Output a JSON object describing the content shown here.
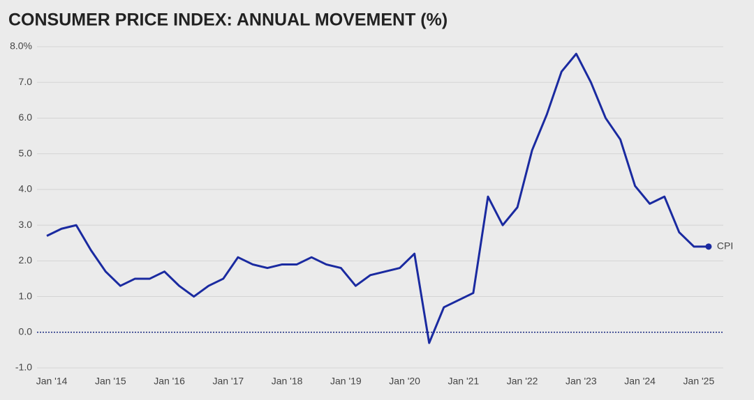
{
  "chart_data": {
    "type": "line",
    "title": "CONSUMER PRICE INDEX: ANNUAL MOVEMENT (%)",
    "x": [
      "2013-12",
      "2014-03",
      "2014-06",
      "2014-09",
      "2014-12",
      "2015-03",
      "2015-06",
      "2015-09",
      "2015-12",
      "2016-03",
      "2016-06",
      "2016-09",
      "2016-12",
      "2017-03",
      "2017-06",
      "2017-09",
      "2017-12",
      "2018-03",
      "2018-06",
      "2018-09",
      "2018-12",
      "2019-03",
      "2019-06",
      "2019-09",
      "2019-12",
      "2020-03",
      "2020-06",
      "2020-09",
      "2020-12",
      "2021-03",
      "2021-06",
      "2021-09",
      "2021-12",
      "2022-03",
      "2022-06",
      "2022-09",
      "2022-12",
      "2023-03",
      "2023-06",
      "2023-09",
      "2023-12",
      "2024-03",
      "2024-06",
      "2024-09",
      "2024-12",
      "2025-03"
    ],
    "series": [
      {
        "name": "CPI",
        "color": "#1a2aa0",
        "values": [
          2.7,
          2.9,
          3.0,
          2.3,
          1.7,
          1.3,
          1.5,
          1.5,
          1.7,
          1.3,
          1.0,
          1.3,
          1.5,
          2.1,
          1.9,
          1.8,
          1.9,
          1.9,
          2.1,
          1.9,
          1.8,
          1.3,
          1.6,
          1.7,
          1.8,
          2.2,
          -0.3,
          0.7,
          0.9,
          1.1,
          3.8,
          3.0,
          3.5,
          5.1,
          6.1,
          7.3,
          7.8,
          7.0,
          6.0,
          5.4,
          4.1,
          3.6,
          3.8,
          2.8,
          2.4,
          2.4
        ]
      }
    ],
    "xlim": [
      "2013-10",
      "2025-06"
    ],
    "xticks": [
      {
        "value": "2014-01",
        "label": "Jan '14"
      },
      {
        "value": "2015-01",
        "label": "Jan '15"
      },
      {
        "value": "2016-01",
        "label": "Jan '16"
      },
      {
        "value": "2017-01",
        "label": "Jan '17"
      },
      {
        "value": "2018-01",
        "label": "Jan '18"
      },
      {
        "value": "2019-01",
        "label": "Jan '19"
      },
      {
        "value": "2020-01",
        "label": "Jan '20"
      },
      {
        "value": "2021-01",
        "label": "Jan '21"
      },
      {
        "value": "2022-01",
        "label": "Jan '22"
      },
      {
        "value": "2023-01",
        "label": "Jan '23"
      },
      {
        "value": "2024-01",
        "label": "Jan '24"
      },
      {
        "value": "2025-01",
        "label": "Jan '25"
      }
    ],
    "ylim": [
      -1,
      8
    ],
    "yticks": [
      {
        "value": -1,
        "label": "-1.0"
      },
      {
        "value": 0,
        "label": "0.0"
      },
      {
        "value": 1,
        "label": "1.0"
      },
      {
        "value": 2,
        "label": "2.0"
      },
      {
        "value": 3,
        "label": "3.0"
      },
      {
        "value": 4,
        "label": "4.0"
      },
      {
        "value": 5,
        "label": "5.0"
      },
      {
        "value": 6,
        "label": "6.0"
      },
      {
        "value": 7,
        "label": "7.0"
      },
      {
        "value": 8,
        "label": "8.0%"
      }
    ],
    "grid": true
  }
}
